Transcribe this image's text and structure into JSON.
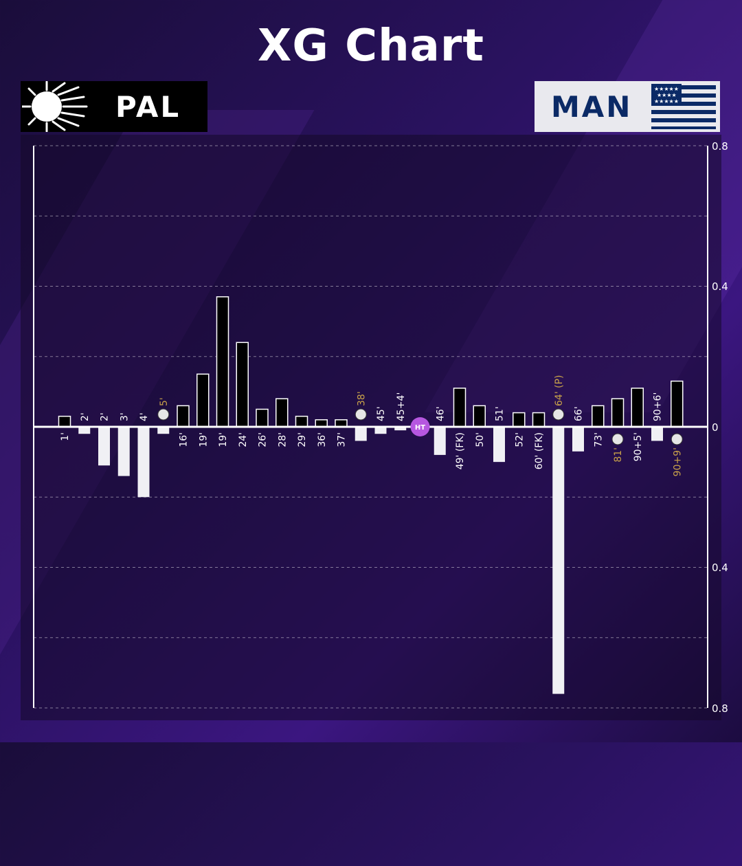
{
  "title": "XG Chart",
  "teams": {
    "home": {
      "name": "PAL",
      "color": "#000000"
    },
    "away": {
      "name": "MAN",
      "color": "#f0f0f4"
    }
  },
  "colors": {
    "goal_label": "#c9a24a",
    "halftime_marker": "#b657e0",
    "label": "#ffffff"
  },
  "halftime_label": "HT",
  "chart_data": {
    "type": "bar",
    "title": "XG Chart",
    "y_tick_labels": [
      "0.8",
      "0.4",
      "0",
      "0.4",
      "0.8"
    ],
    "ylim": [
      -0.8,
      0.8
    ],
    "grid": true,
    "events": [
      {
        "minute": "1'",
        "team": "PAL",
        "xg": 0.03,
        "goal": false
      },
      {
        "minute": "2'",
        "team": "MAN",
        "xg": 0.02,
        "goal": false
      },
      {
        "minute": "2'",
        "team": "MAN",
        "xg": 0.11,
        "goal": false
      },
      {
        "minute": "3'",
        "team": "MAN",
        "xg": 0.14,
        "goal": false
      },
      {
        "minute": "4'",
        "team": "MAN",
        "xg": 0.2,
        "goal": false
      },
      {
        "minute": "5'",
        "team": "MAN",
        "xg": 0.02,
        "goal": true
      },
      {
        "minute": "16'",
        "team": "PAL",
        "xg": 0.06,
        "goal": false
      },
      {
        "minute": "19'",
        "team": "PAL",
        "xg": 0.15,
        "goal": false
      },
      {
        "minute": "19'",
        "team": "PAL",
        "xg": 0.37,
        "goal": false
      },
      {
        "minute": "24'",
        "team": "PAL",
        "xg": 0.24,
        "goal": false
      },
      {
        "minute": "26'",
        "team": "PAL",
        "xg": 0.05,
        "goal": false
      },
      {
        "minute": "28'",
        "team": "PAL",
        "xg": 0.08,
        "goal": false
      },
      {
        "minute": "29'",
        "team": "PAL",
        "xg": 0.03,
        "goal": false
      },
      {
        "minute": "36'",
        "team": "PAL",
        "xg": 0.02,
        "goal": false
      },
      {
        "minute": "37'",
        "team": "PAL",
        "xg": 0.02,
        "goal": false
      },
      {
        "minute": "38'",
        "team": "MAN",
        "xg": 0.04,
        "goal": true
      },
      {
        "minute": "45'",
        "team": "MAN",
        "xg": 0.02,
        "goal": false
      },
      {
        "minute": "45+4'",
        "team": "MAN",
        "xg": 0.01,
        "goal": false
      },
      {
        "minute": "HT",
        "team": null,
        "xg": 0,
        "goal": false,
        "halftime": true
      },
      {
        "minute": "46'",
        "team": "MAN",
        "xg": 0.08,
        "goal": false
      },
      {
        "minute": "49' (FK)",
        "team": "PAL",
        "xg": 0.11,
        "goal": false
      },
      {
        "minute": "50'",
        "team": "PAL",
        "xg": 0.06,
        "goal": false
      },
      {
        "minute": "51'",
        "team": "MAN",
        "xg": 0.1,
        "goal": false
      },
      {
        "minute": "52'",
        "team": "PAL",
        "xg": 0.04,
        "goal": false
      },
      {
        "minute": "60' (FK)",
        "team": "PAL",
        "xg": 0.04,
        "goal": false
      },
      {
        "minute": "64' (P)",
        "team": "MAN",
        "xg": 0.76,
        "goal": true
      },
      {
        "minute": "66'",
        "team": "MAN",
        "xg": 0.07,
        "goal": false
      },
      {
        "minute": "73'",
        "team": "PAL",
        "xg": 0.06,
        "goal": false
      },
      {
        "minute": "81'",
        "team": "PAL",
        "xg": 0.08,
        "goal": true
      },
      {
        "minute": "90+5'",
        "team": "PAL",
        "xg": 0.11,
        "goal": false
      },
      {
        "minute": "90+6'",
        "team": "MAN",
        "xg": 0.04,
        "goal": false
      },
      {
        "minute": "90+9'",
        "team": "PAL",
        "xg": 0.13,
        "goal": true
      }
    ]
  }
}
